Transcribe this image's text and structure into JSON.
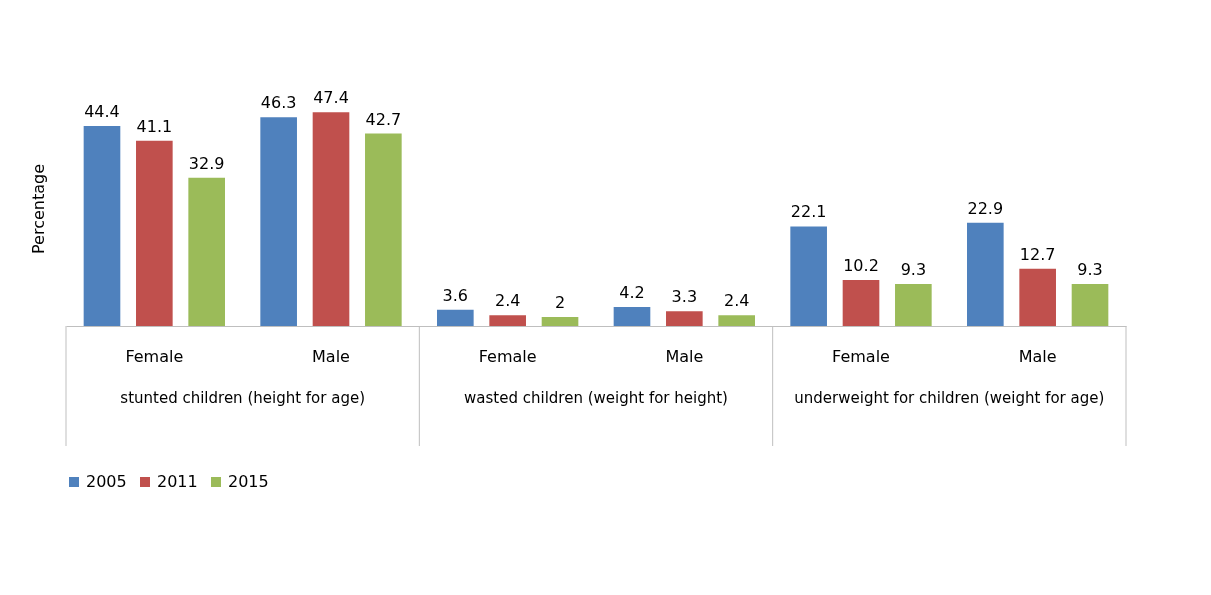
{
  "chart_data": {
    "type": "bar",
    "ylabel": "Percentage",
    "categories": [
      "Female",
      "Male",
      "Female",
      "Male",
      "Female",
      "Male"
    ],
    "annotations": [
      "stunted children (height for age)",
      "wasted children (weight for height)",
      "underweight for children (weight for age)"
    ],
    "series": [
      {
        "name": "2005",
        "color": "#4f81bd",
        "values": [
          44.4,
          46.3,
          3.6,
          4.2,
          22.1,
          22.9
        ]
      },
      {
        "name": "2011",
        "color": "#c0504d",
        "values": [
          41.1,
          47.4,
          2.4,
          3.3,
          10.2,
          12.7
        ]
      },
      {
        "name": "2015",
        "color": "#9bbb59",
        "values": [
          32.9,
          42.7,
          2,
          2.4,
          9.3,
          9.3
        ]
      }
    ],
    "data_labels": true,
    "legend": "bottom",
    "grid": false,
    "tick_labels": "x"
  }
}
